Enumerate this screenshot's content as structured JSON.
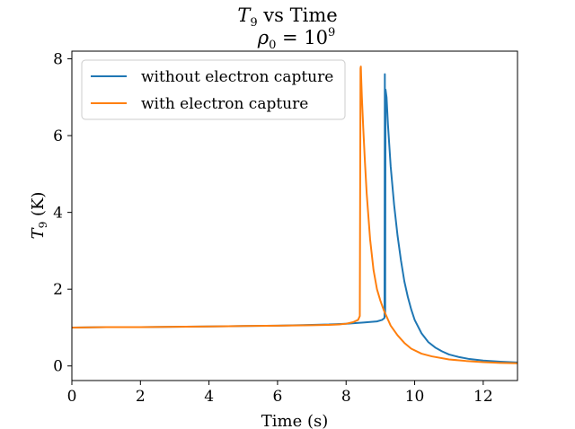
{
  "chart_data": {
    "type": "line",
    "title": "T9 vs Time",
    "subtitle": "ρ0 = 10^9",
    "xlabel": "Time (s)",
    "ylabel": "T9 (K)",
    "xlim": [
      0,
      13
    ],
    "ylim": [
      -0.38,
      8.2
    ],
    "xticks": [
      0,
      2,
      4,
      6,
      8,
      10,
      12
    ],
    "yticks": [
      0,
      2,
      4,
      6,
      8
    ],
    "grid": false,
    "legend": "top-left",
    "series": [
      {
        "name": "without electron capture",
        "color": "#1f77b4",
        "x": [
          0,
          1,
          2,
          3,
          4,
          5,
          6,
          7,
          7.5,
          8,
          8.5,
          8.9,
          9.05,
          9.12,
          9.13,
          9.14,
          9.15,
          9.18,
          9.22,
          9.3,
          9.4,
          9.5,
          9.6,
          9.7,
          9.8,
          9.9,
          10.0,
          10.2,
          10.4,
          10.6,
          10.8,
          11.0,
          11.3,
          11.6,
          12.0,
          12.5,
          13.0
        ],
        "y": [
          1.0,
          1.01,
          1.01,
          1.02,
          1.03,
          1.04,
          1.05,
          1.07,
          1.08,
          1.1,
          1.13,
          1.16,
          1.2,
          1.25,
          7.6,
          1.3,
          7.2,
          7.0,
          6.3,
          5.2,
          4.2,
          3.4,
          2.75,
          2.2,
          1.8,
          1.47,
          1.2,
          0.85,
          0.62,
          0.48,
          0.38,
          0.3,
          0.23,
          0.18,
          0.14,
          0.11,
          0.09
        ]
      },
      {
        "name": "with electron capture",
        "color": "#ff7f0e",
        "x": [
          0,
          1,
          2,
          3,
          4,
          5,
          6,
          7,
          7.5,
          7.8,
          8.0,
          8.2,
          8.35,
          8.4,
          8.42,
          8.43,
          8.44,
          8.46,
          8.5,
          8.55,
          8.6,
          8.7,
          8.8,
          8.9,
          9.0,
          9.1,
          9.2,
          9.3,
          9.5,
          9.7,
          9.9,
          10.2,
          10.5,
          11.0,
          11.5,
          12.0,
          12.5,
          13.0
        ],
        "y": [
          1.0,
          1.01,
          1.01,
          1.02,
          1.03,
          1.04,
          1.05,
          1.06,
          1.07,
          1.08,
          1.1,
          1.14,
          1.2,
          1.3,
          7.75,
          7.8,
          7.5,
          7.0,
          6.2,
          5.3,
          4.5,
          3.3,
          2.5,
          2.0,
          1.7,
          1.45,
          1.25,
          1.05,
          0.8,
          0.6,
          0.45,
          0.32,
          0.25,
          0.17,
          0.13,
          0.1,
          0.08,
          0.07
        ]
      }
    ]
  }
}
